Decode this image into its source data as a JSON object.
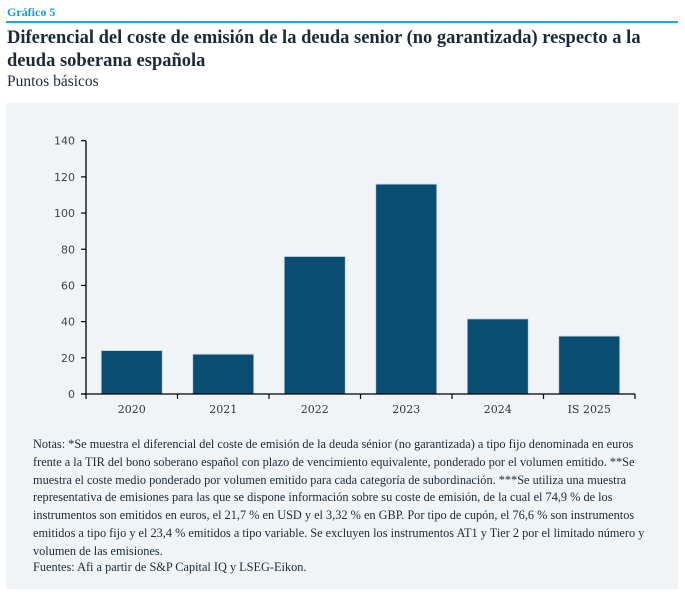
{
  "figure_label": "Gráfico 5",
  "title": "Diferencial del coste de emisión de la deuda senior (no garantizada) respecto a la deuda soberana española",
  "subtitle": "Puntos básicos",
  "colors": {
    "bar": "#0a4d72",
    "accent": "#1fa7de",
    "panel_bg": "#f0f4f6"
  },
  "chart_data": {
    "type": "bar",
    "title": "Diferencial del coste de emisión de la deuda senior (no garantizada) respecto a la deuda soberana española",
    "ylabel": "Puntos básicos",
    "xlabel": "",
    "categories": [
      "2020",
      "2021",
      "2022",
      "2023",
      "2024",
      "IS 2025"
    ],
    "values": [
      24,
      22,
      76,
      116,
      41.5,
      32
    ],
    "ylim": [
      0,
      140
    ],
    "yticks": [
      0,
      20,
      40,
      60,
      80,
      100,
      120,
      140
    ],
    "grid": false,
    "legend": "none"
  },
  "notes": "Notas: *Se muestra el diferencial del coste de emisión de la deuda sénior (no garantizada) a tipo fijo denominada en euros frente a la TIR del bono soberano español con plazo de vencimiento equivalente, ponderado por el volumen emitido. **Se muestra el coste medio ponderado por volumen emitido para cada categoría de subordinación. ***Se utiliza una muestra representativa de emisiones para las que se dispone información sobre su coste de emisión, de la cual el 74,9 % de los instrumentos son emitidos en euros, el 21,7 % en USD y el 3,32 % en GBP. Por tipo de cupón, el 76,6 % son instrumentos emitidos a tipo fijo y el 23,4 % emitidos a tipo variable. Se excluyen los instrumentos AT1 y Tier 2 por el limitado número y volumen de las emisiones.",
  "sources": "Fuentes: Afi a partir de S&P Capital IQ y LSEG-Eikon."
}
